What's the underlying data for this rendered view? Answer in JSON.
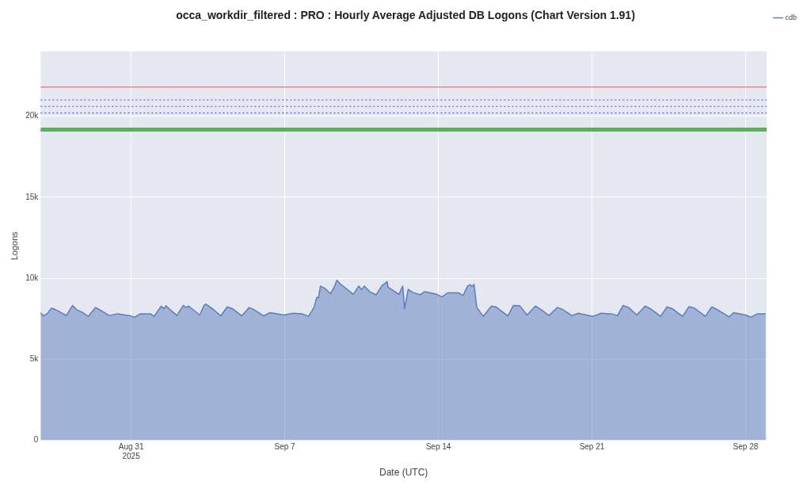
{
  "chart_data": {
    "type": "area",
    "title": "occa_workdir_filtered : PRO : Hourly Average Adjusted DB Logons (Chart Version 1.91)",
    "xlabel": "Date (UTC)",
    "ylabel": "Logons",
    "x": [
      "2025-08-26T21:00",
      "2025-08-27T00:00",
      "2025-08-27T04:00",
      "2025-08-27T09:00",
      "2025-08-27T13:00",
      "2025-08-27T17:00",
      "2025-08-28T01:00",
      "2025-08-28T08:00",
      "2025-08-28T12:00",
      "2025-08-28T18:00",
      "2025-08-29T01:00",
      "2025-08-29T09:00",
      "2025-08-29T14:00",
      "2025-08-30T00:00",
      "2025-08-30T09:00",
      "2025-08-30T22:00",
      "2025-08-31T04:00",
      "2025-08-31T10:00",
      "2025-08-31T21:00",
      "2025-09-01T01:00",
      "2025-09-01T09:00",
      "2025-09-01T12:00",
      "2025-09-01T14:00",
      "2025-09-01T19:00",
      "2025-09-02T02:00",
      "2025-09-02T09:00",
      "2025-09-02T12:00",
      "2025-09-02T15:00",
      "2025-09-03T03:00",
      "2025-09-03T08:00",
      "2025-09-03T10:00",
      "2025-09-03T13:00",
      "2025-09-03T17:00",
      "2025-09-04T02:00",
      "2025-09-04T09:00",
      "2025-09-04T15:00",
      "2025-09-05T01:00",
      "2025-09-05T09:00",
      "2025-09-05T15:00",
      "2025-09-06T01:00",
      "2025-09-06T08:00",
      "2025-09-06T23:00",
      "2025-09-07T09:00",
      "2025-09-07T19:00",
      "2025-09-08T02:00",
      "2025-09-08T08:00",
      "2025-09-08T11:00",
      "2025-09-08T13:00",
      "2025-09-08T15:00",
      "2025-09-08T20:00",
      "2025-09-09T02:00",
      "2025-09-09T06:00",
      "2025-09-09T09:00",
      "2025-09-09T13:00",
      "2025-09-09T19:00",
      "2025-09-10T03:00",
      "2025-09-10T09:00",
      "2025-09-10T12:00",
      "2025-09-10T15:00",
      "2025-09-10T21:00",
      "2025-09-11T04:00",
      "2025-09-11T10:00",
      "2025-09-11T16:00",
      "2025-09-11T17:00",
      "2025-09-12T05:00",
      "2025-09-12T09:00",
      "2025-09-12T11:00",
      "2025-09-12T15:00",
      "2025-09-12T20:00",
      "2025-09-13T04:00",
      "2025-09-13T09:00",
      "2025-09-13T22:00",
      "2025-09-14T04:00",
      "2025-09-14T10:00",
      "2025-09-14T22:00",
      "2025-09-15T03:00",
      "2025-09-15T08:00",
      "2025-09-15T11:00",
      "2025-09-15T13:00",
      "2025-09-15T15:00",
      "2025-09-15T18:00",
      "2025-09-16T01:00",
      "2025-09-16T10:00",
      "2025-09-16T15:00",
      "2025-09-17T04:00",
      "2025-09-17T10:00",
      "2025-09-17T17:00",
      "2025-09-18T01:00",
      "2025-09-18T10:00",
      "2025-09-18T15:00",
      "2025-09-19T01:00",
      "2025-09-19T10:00",
      "2025-09-19T16:00",
      "2025-09-20T02:00",
      "2025-09-20T09:00",
      "2025-09-21T01:00",
      "2025-09-21T10:00",
      "2025-09-21T21:00",
      "2025-09-22T04:00",
      "2025-09-22T10:00",
      "2025-09-22T16:00",
      "2025-09-23T01:00",
      "2025-09-23T10:00",
      "2025-09-23T16:00",
      "2025-09-24T03:00",
      "2025-09-24T10:00",
      "2025-09-24T16:00",
      "2025-09-25T03:00",
      "2025-09-25T10:00",
      "2025-09-25T16:00",
      "2025-09-26T04:00",
      "2025-09-26T11:00",
      "2025-09-26T17:00",
      "2025-09-27T06:00",
      "2025-09-27T11:00",
      "2025-09-28T00:00",
      "2025-09-28T06:00",
      "2025-09-28T13:00",
      "2025-09-28T22:00"
    ],
    "series": [
      {
        "name": "cdb",
        "color": "#5a7dbd",
        "values": [
          7880,
          7680,
          7810,
          8160,
          8070,
          7960,
          7700,
          8320,
          8070,
          7920,
          7650,
          8200,
          8040,
          7700,
          7810,
          7700,
          7600,
          7810,
          7810,
          7650,
          8280,
          8120,
          8300,
          8040,
          7700,
          8320,
          8200,
          8280,
          7730,
          8350,
          8400,
          8280,
          8120,
          7680,
          8230,
          8120,
          7680,
          8200,
          8040,
          7680,
          7880,
          7730,
          7840,
          7810,
          7650,
          8200,
          8820,
          8820,
          9520,
          9370,
          9050,
          9450,
          9880,
          9630,
          9370,
          9010,
          9520,
          9290,
          9520,
          9170,
          8980,
          9520,
          9790,
          9450,
          9010,
          9520,
          8120,
          9320,
          9130,
          8980,
          9170,
          9010,
          8850,
          9100,
          9100,
          8930,
          9520,
          9600,
          9480,
          9630,
          8200,
          7650,
          8280,
          8230,
          7680,
          8320,
          8300,
          7730,
          8280,
          8120,
          7700,
          8200,
          8070,
          7700,
          7840,
          7650,
          7840,
          7810,
          7700,
          8320,
          8200,
          7730,
          8280,
          8120,
          7650,
          8230,
          8120,
          7650,
          8240,
          8160,
          7650,
          8230,
          8070,
          7620,
          7880,
          7730,
          7600,
          7810,
          7810
        ]
      }
    ],
    "xlim": [
      "2025-08-26T21:00",
      "2025-09-28T23:00"
    ],
    "xticks": [
      {
        "value": "2025-08-31",
        "label": "Aug 31\n2025"
      },
      {
        "value": "2025-09-07",
        "label": "Sep 7"
      },
      {
        "value": "2025-09-14",
        "label": "Sep 14"
      },
      {
        "value": "2025-09-21",
        "label": "Sep 21"
      },
      {
        "value": "2025-09-28",
        "label": "Sep 28"
      }
    ],
    "ylim": [
      0,
      24000
    ],
    "yticks": [
      0,
      {
        "value": 5000,
        "label": "5k"
      },
      {
        "value": 10000,
        "label": "10k"
      },
      {
        "value": 15000,
        "label": "15k"
      },
      {
        "value": 20000,
        "label": "20k"
      }
    ],
    "ref_lines": [
      {
        "axis": "y",
        "value": 21800,
        "color": "#f07070",
        "line_style": "solid"
      },
      {
        "axis": "y",
        "value": 21000,
        "color": "#6a6af0",
        "line_style": "dotted"
      },
      {
        "axis": "y",
        "value": 20600,
        "color": "#6a6af0",
        "line_style": "dotted"
      },
      {
        "axis": "y",
        "value": 20200,
        "color": "#6a6af0",
        "line_style": "dotted"
      }
    ],
    "bands": [
      {
        "axis": "y",
        "from": 19050,
        "to": 19300,
        "color": "#5aaf5a"
      }
    ],
    "grid": true,
    "legend": "top right",
    "marker": "none",
    "line_style": "solid"
  }
}
